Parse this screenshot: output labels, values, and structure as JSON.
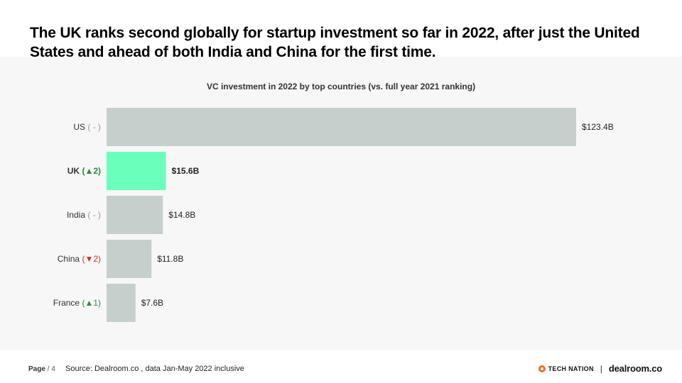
{
  "headline": "The UK ranks second globally for startup investment so far in 2022, after just the United States and ahead of both India and China for the first time.",
  "chart_data": {
    "type": "bar",
    "orientation": "horizontal",
    "title": "VC investment in 2022 by top countries (vs. full year 2021 ranking)",
    "categories": [
      "US",
      "UK",
      "India",
      "China",
      "France"
    ],
    "rank_change": [
      "-",
      "▲2",
      "-",
      "▼2",
      "▲1"
    ],
    "rank_change_direction": [
      "none",
      "up",
      "none",
      "down",
      "up"
    ],
    "values": [
      123.4,
      15.6,
      14.8,
      11.8,
      7.6
    ],
    "value_labels": [
      "$123.4B",
      "$15.6B",
      "$14.8B",
      "$11.8B",
      "$7.6B"
    ],
    "unit": "USD billions",
    "highlight": "UK",
    "xlim": [
      0,
      123.4
    ],
    "grid": false
  },
  "colors": {
    "bar": "#c5cfcb",
    "highlight_bar": "#6affba",
    "up": "#2e8b3e",
    "down": "#c0392b",
    "neutral": "#999999"
  },
  "footer": {
    "page_label": "Page",
    "page_number": "/ 4",
    "source": "Source: Dealroom.co , data Jan-May 2022 inclusive",
    "logo_tech_nation": "TECH NATION",
    "separator": "|",
    "logo_dealroom": "dealroom.co"
  }
}
